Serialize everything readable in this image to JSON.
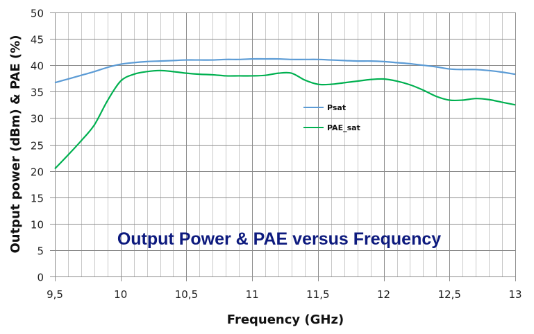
{
  "chart_data": {
    "type": "line",
    "title": "Output Power & PAE versus Frequency",
    "xlabel": "Frequency (GHz)",
    "ylabel": "Output power (dBm) & PAE (%)",
    "xlim": [
      9.5,
      13
    ],
    "ylim": [
      0,
      50
    ],
    "x_ticks": [
      "9,5",
      "10",
      "10,5",
      "11",
      "11,5",
      "12",
      "12,5",
      "13"
    ],
    "x_tick_values": [
      9.5,
      10,
      10.5,
      11,
      11.5,
      12,
      12.5,
      13
    ],
    "y_ticks": [
      0,
      5,
      10,
      15,
      20,
      25,
      30,
      35,
      40,
      45,
      50
    ],
    "grid": true,
    "x_minor_step": 0.1,
    "legend_position": "inside-center-right",
    "x": [
      9.5,
      9.6,
      9.7,
      9.8,
      9.9,
      10.0,
      10.1,
      10.2,
      10.3,
      10.4,
      10.5,
      10.6,
      10.7,
      10.8,
      10.9,
      11.0,
      11.1,
      11.2,
      11.3,
      11.4,
      11.5,
      11.6,
      11.7,
      11.8,
      11.9,
      12.0,
      12.1,
      12.2,
      12.3,
      12.4,
      12.5,
      12.6,
      12.7,
      12.8,
      12.9,
      13.0
    ],
    "series": [
      {
        "name": "Psat",
        "color": "#5b9bd5",
        "values": [
          36.7,
          37.4,
          38.1,
          38.8,
          39.6,
          40.2,
          40.5,
          40.7,
          40.8,
          40.9,
          41.0,
          41.0,
          41.0,
          41.1,
          41.1,
          41.2,
          41.2,
          41.2,
          41.1,
          41.1,
          41.1,
          41.0,
          40.9,
          40.8,
          40.8,
          40.7,
          40.5,
          40.3,
          40.0,
          39.7,
          39.3,
          39.2,
          39.2,
          39.0,
          38.7,
          38.3
        ]
      },
      {
        "name": "PAE_sat",
        "color": "#00b050",
        "values": [
          20.4,
          23.0,
          25.7,
          28.7,
          33.3,
          37.0,
          38.3,
          38.8,
          39.0,
          38.8,
          38.5,
          38.3,
          38.2,
          38.0,
          38.0,
          38.0,
          38.1,
          38.5,
          38.5,
          37.2,
          36.4,
          36.4,
          36.7,
          37.0,
          37.3,
          37.4,
          37.0,
          36.3,
          35.3,
          34.1,
          33.4,
          33.4,
          33.7,
          33.5,
          33.0,
          32.5
        ]
      }
    ]
  },
  "legend": {
    "items": [
      {
        "label": "Psat",
        "color": "#5b9bd5"
      },
      {
        "label": "PAE_sat",
        "color": "#00b050"
      }
    ]
  },
  "title_color": "#0d1a7e"
}
